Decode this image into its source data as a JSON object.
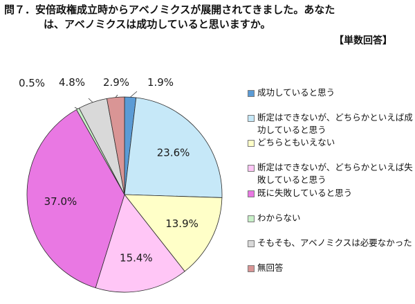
{
  "title_line1": "問７．安倍政権成立時からアベノミクスが展開されてきました。あなた",
  "title_line2": "は、アベノミクスは成功していると思いますか。",
  "badge": "【単数回答】",
  "chart_data": {
    "type": "pie",
    "start_angle_deg": 0,
    "direction": "clockwise",
    "slices": [
      {
        "label": "成功していると思う",
        "value": 1.9,
        "display": "1.9%",
        "color": "#5b9bd5"
      },
      {
        "label": "断定はできないが、どちらかといえば成功していると思う",
        "value": 23.6,
        "display": "23.6%",
        "color": "#c6e8f8"
      },
      {
        "label": "どちらともいえない",
        "value": 13.9,
        "display": "13.9%",
        "color": "#ffffc8"
      },
      {
        "label": "断定はできないが、どちらかといえば失敗していると思う",
        "value": 15.4,
        "display": "15.4%",
        "color": "#ffc6f6"
      },
      {
        "label": "既に失敗していると思う",
        "value": 37.0,
        "display": "37.0%",
        "color": "#e978e3"
      },
      {
        "label": "わからない",
        "value": 0.5,
        "display": "0.5%",
        "color": "#c8f0c8"
      },
      {
        "label": "そもそも、アベノミクスは必要なかった",
        "value": 4.8,
        "display": "4.8%",
        "color": "#d9d9d9"
      },
      {
        "label": "無回答",
        "value": 2.9,
        "display": "2.9%",
        "color": "#d99595"
      }
    ],
    "legend_placement": "right"
  }
}
